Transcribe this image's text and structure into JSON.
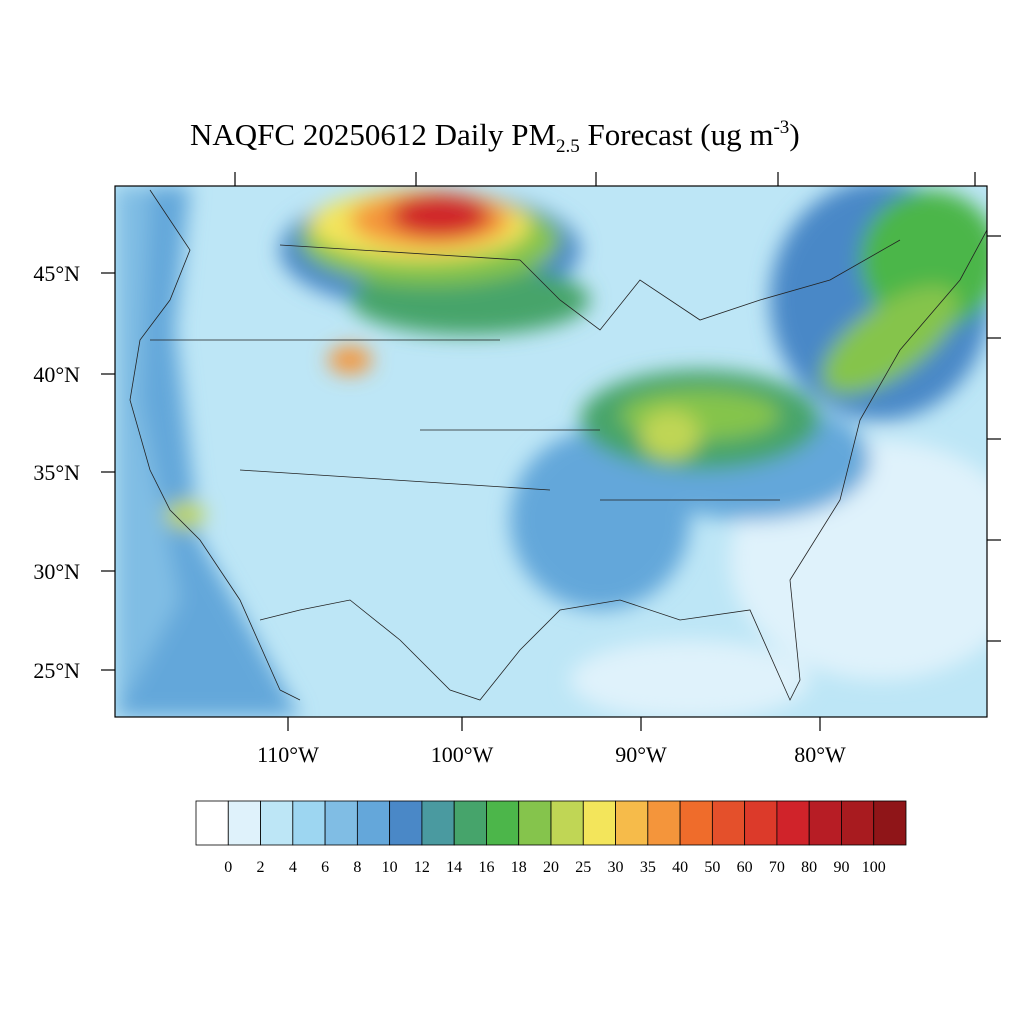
{
  "header": {
    "title": {
      "main": "NAQFC 20250612 Daily PM",
      "sub": "2.5",
      "mid": " Forecast (ug m",
      "sup": "-3",
      "end": ")"
    }
  },
  "map": {
    "lat_labels": [
      "45°N",
      "40°N",
      "35°N",
      "30°N",
      "25°N"
    ],
    "lon_labels": [
      "110°W",
      "100°W",
      "90°W",
      "80°W"
    ]
  },
  "colorbar": {
    "levels": [
      0,
      2,
      4,
      6,
      8,
      10,
      12,
      14,
      16,
      18,
      20,
      25,
      30,
      35,
      40,
      50,
      60,
      70,
      80,
      90,
      100
    ],
    "colors": [
      "#ffffff",
      "#dff2fb",
      "#bde6f6",
      "#9dd6f1",
      "#80bde4",
      "#64a7da",
      "#4a88c7",
      "#4a9aa0",
      "#46a46b",
      "#4cb64a",
      "#85c44c",
      "#c0d655",
      "#f3e55b",
      "#f6bb4a",
      "#f4953b",
      "#ef6c2b",
      "#e4502b",
      "#dc3a2a",
      "#d0232a",
      "#b71d25",
      "#a81b1f",
      "#8f1518"
    ]
  }
}
